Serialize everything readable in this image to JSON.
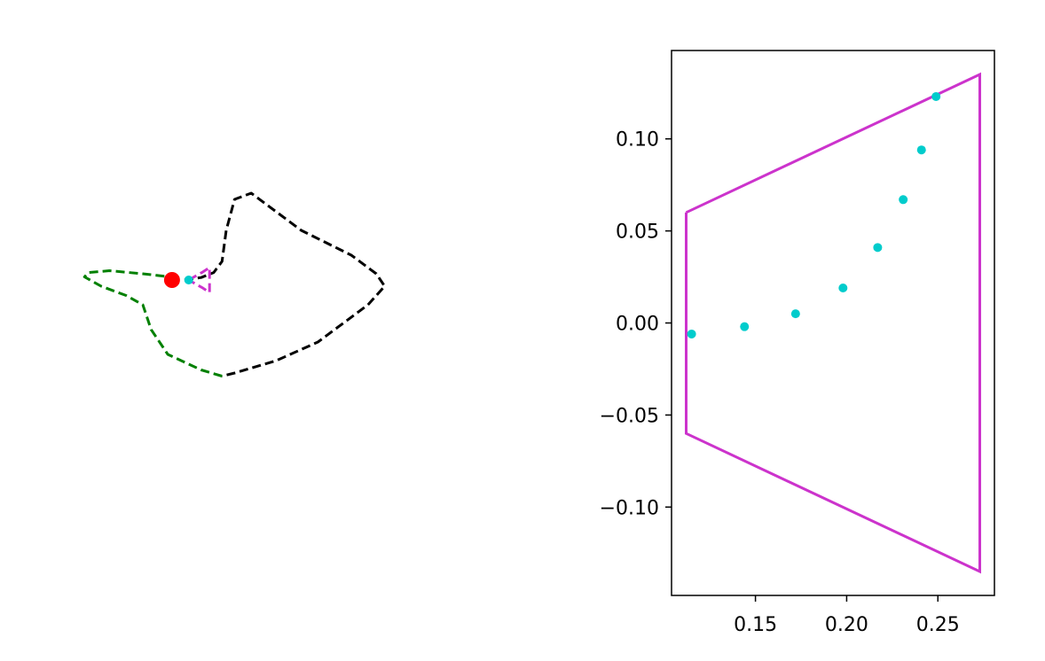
{
  "chart_data": [
    {
      "type": "line",
      "panel": "left",
      "axes_visible": false,
      "grid": false,
      "series": [
        {
          "color": "#000000",
          "style": "dashed",
          "points": [
            [
              0.0,
              0.0
            ],
            [
              0.02,
              0.004
            ],
            [
              0.035,
              0.012
            ],
            [
              0.045,
              0.03
            ],
            [
              0.05,
              0.08
            ],
            [
              0.06,
              0.13
            ],
            [
              0.08,
              0.14
            ],
            [
              0.1,
              0.12
            ],
            [
              0.14,
              0.08
            ],
            [
              0.2,
              0.04
            ],
            [
              0.23,
              0.01
            ],
            [
              0.24,
              -0.01
            ],
            [
              0.22,
              -0.04
            ],
            [
              0.16,
              -0.1
            ],
            [
              0.11,
              -0.13
            ],
            [
              0.06,
              -0.15
            ],
            [
              0.045,
              -0.155
            ]
          ]
        },
        {
          "color": "#008000",
          "style": "dashed",
          "points": [
            [
              0.045,
              -0.155
            ],
            [
              0.02,
              -0.145
            ],
            [
              -0.02,
              -0.12
            ],
            [
              -0.04,
              -0.08
            ],
            [
              -0.05,
              -0.04
            ],
            [
              -0.07,
              -0.025
            ],
            [
              -0.1,
              -0.01
            ],
            [
              -0.12,
              0.005
            ],
            [
              -0.115,
              0.012
            ],
            [
              -0.09,
              0.015
            ],
            [
              -0.05,
              0.01
            ],
            [
              -0.01,
              0.004
            ],
            [
              -0.015,
              0.0
            ]
          ]
        },
        {
          "color": "#cc33cc",
          "style": "dashed",
          "points": [
            [
              0.005,
              0.0
            ],
            [
              0.022,
              0.013
            ],
            [
              0.03,
              0.02
            ],
            [
              0.03,
              -0.02
            ],
            [
              0.022,
              -0.013
            ],
            [
              0.005,
              0.0
            ]
          ]
        }
      ],
      "markers": [
        {
          "color": "#ff0000",
          "x": -0.015,
          "y": 0.0
        },
        {
          "color": "#00cccc",
          "x": 0.005,
          "y": 0.0
        }
      ]
    },
    {
      "type": "scatter",
      "panel": "right",
      "grid": false,
      "xlim": [
        0.104,
        0.281
      ],
      "ylim": [
        -0.148,
        0.148
      ],
      "xticks": [
        0.15,
        0.2,
        0.25
      ],
      "xtick_labels": [
        "0.15",
        "0.20",
        "0.25"
      ],
      "yticks": [
        -0.1,
        -0.05,
        0.0,
        0.05,
        0.1
      ],
      "ytick_labels": [
        "−0.10",
        "−0.05",
        "0.00",
        "0.05",
        "0.10"
      ],
      "polygon": {
        "color": "#cc33cc",
        "points": [
          [
            0.112,
            0.06
          ],
          [
            0.273,
            0.135
          ],
          [
            0.273,
            -0.135
          ],
          [
            0.112,
            -0.06
          ],
          [
            0.112,
            0.06
          ]
        ]
      },
      "points": {
        "color": "#00cccc",
        "x": [
          0.115,
          0.144,
          0.172,
          0.198,
          0.217,
          0.231,
          0.241,
          0.249
        ],
        "y": [
          -0.006,
          -0.002,
          0.005,
          0.019,
          0.041,
          0.067,
          0.094,
          0.123
        ]
      }
    }
  ]
}
